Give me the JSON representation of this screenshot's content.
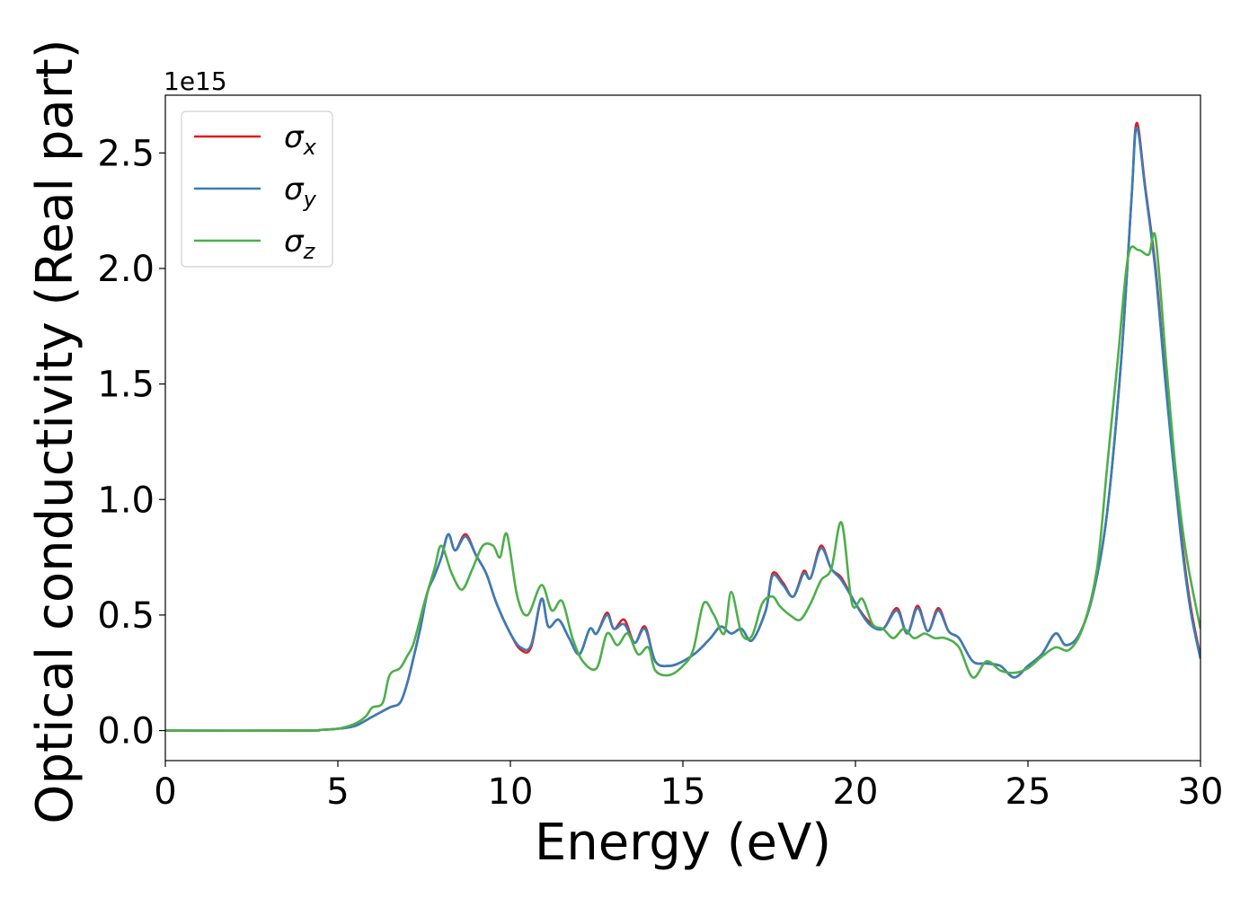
{
  "chart_data": {
    "type": "line",
    "title": "",
    "xlabel": "Energy (eV)",
    "ylabel": "Optical conductivity (Real part)",
    "y_offset_text": "1e15",
    "xlim": [
      0,
      30
    ],
    "ylim": [
      -0.13,
      2.75
    ],
    "x_ticks": [
      0,
      5,
      10,
      15,
      20,
      25,
      30
    ],
    "y_ticks": [
      0.0,
      0.5,
      1.0,
      1.5,
      2.0,
      2.5
    ],
    "x_tick_labels": [
      "0",
      "5",
      "10",
      "15",
      "20",
      "25",
      "30"
    ],
    "y_tick_labels": [
      "0.0",
      "0.5",
      "1.0",
      "1.5",
      "2.0",
      "2.5"
    ],
    "grid": false,
    "legend_position": "top-left",
    "series": [
      {
        "name": "σx",
        "name_symbol": "σ",
        "name_subscript": "x",
        "color": "#e41a1c",
        "points": [
          [
            0,
            0
          ],
          [
            4,
            0.0
          ],
          [
            4.5,
            0.003
          ],
          [
            5,
            0.008
          ],
          [
            5.5,
            0.02
          ],
          [
            6,
            0.06
          ],
          [
            6.5,
            0.1
          ],
          [
            6.8,
            0.12
          ],
          [
            7,
            0.2
          ],
          [
            7.2,
            0.32
          ],
          [
            7.4,
            0.45
          ],
          [
            7.6,
            0.6
          ],
          [
            7.8,
            0.67
          ],
          [
            8,
            0.75
          ],
          [
            8.2,
            0.85
          ],
          [
            8.4,
            0.78
          ],
          [
            8.7,
            0.85
          ],
          [
            9,
            0.76
          ],
          [
            9.3,
            0.68
          ],
          [
            9.6,
            0.55
          ],
          [
            10,
            0.42
          ],
          [
            10.3,
            0.35
          ],
          [
            10.6,
            0.36
          ],
          [
            10.9,
            0.57
          ],
          [
            11.1,
            0.45
          ],
          [
            11.4,
            0.48
          ],
          [
            11.7,
            0.4
          ],
          [
            12,
            0.33
          ],
          [
            12.3,
            0.44
          ],
          [
            12.5,
            0.42
          ],
          [
            12.8,
            0.51
          ],
          [
            13,
            0.44
          ],
          [
            13.3,
            0.48
          ],
          [
            13.6,
            0.38
          ],
          [
            13.9,
            0.45
          ],
          [
            14.2,
            0.3
          ],
          [
            14.6,
            0.28
          ],
          [
            15,
            0.3
          ],
          [
            15.4,
            0.34
          ],
          [
            15.8,
            0.4
          ],
          [
            16.1,
            0.45
          ],
          [
            16.4,
            0.42
          ],
          [
            16.7,
            0.44
          ],
          [
            17,
            0.39
          ],
          [
            17.4,
            0.52
          ],
          [
            17.6,
            0.68
          ],
          [
            17.9,
            0.64
          ],
          [
            18.2,
            0.58
          ],
          [
            18.5,
            0.69
          ],
          [
            18.7,
            0.66
          ],
          [
            19,
            0.8
          ],
          [
            19.3,
            0.7
          ],
          [
            19.6,
            0.66
          ],
          [
            20,
            0.55
          ],
          [
            20.4,
            0.47
          ],
          [
            20.8,
            0.44
          ],
          [
            21.2,
            0.53
          ],
          [
            21.5,
            0.42
          ],
          [
            21.8,
            0.54
          ],
          [
            22.1,
            0.43
          ],
          [
            22.4,
            0.53
          ],
          [
            22.7,
            0.43
          ],
          [
            23,
            0.4
          ],
          [
            23.4,
            0.3
          ],
          [
            23.8,
            0.29
          ],
          [
            24.2,
            0.28
          ],
          [
            24.6,
            0.23
          ],
          [
            25,
            0.28
          ],
          [
            25.4,
            0.33
          ],
          [
            25.8,
            0.42
          ],
          [
            26.1,
            0.37
          ],
          [
            26.5,
            0.42
          ],
          [
            26.9,
            0.6
          ],
          [
            27.3,
            0.95
          ],
          [
            27.7,
            1.6
          ],
          [
            28,
            2.3
          ],
          [
            28.15,
            2.63
          ],
          [
            28.4,
            2.35
          ],
          [
            28.7,
            2.0
          ],
          [
            29,
            1.5
          ],
          [
            29.4,
            0.9
          ],
          [
            29.7,
            0.55
          ],
          [
            30,
            0.32
          ]
        ]
      },
      {
        "name": "σy",
        "name_symbol": "σ",
        "name_subscript": "y",
        "color": "#377eb8",
        "points": [
          [
            0,
            0
          ],
          [
            4,
            0.0
          ],
          [
            4.5,
            0.003
          ],
          [
            5,
            0.008
          ],
          [
            5.5,
            0.02
          ],
          [
            6,
            0.06
          ],
          [
            6.5,
            0.1
          ],
          [
            6.8,
            0.12
          ],
          [
            7,
            0.2
          ],
          [
            7.2,
            0.32
          ],
          [
            7.4,
            0.45
          ],
          [
            7.6,
            0.6
          ],
          [
            7.8,
            0.67
          ],
          [
            8,
            0.75
          ],
          [
            8.2,
            0.85
          ],
          [
            8.4,
            0.78
          ],
          [
            8.7,
            0.84
          ],
          [
            9,
            0.76
          ],
          [
            9.3,
            0.68
          ],
          [
            9.6,
            0.55
          ],
          [
            10,
            0.42
          ],
          [
            10.3,
            0.36
          ],
          [
            10.6,
            0.37
          ],
          [
            10.9,
            0.57
          ],
          [
            11.1,
            0.45
          ],
          [
            11.4,
            0.48
          ],
          [
            11.7,
            0.4
          ],
          [
            12,
            0.33
          ],
          [
            12.3,
            0.44
          ],
          [
            12.5,
            0.42
          ],
          [
            12.8,
            0.5
          ],
          [
            13,
            0.44
          ],
          [
            13.3,
            0.46
          ],
          [
            13.6,
            0.38
          ],
          [
            13.9,
            0.44
          ],
          [
            14.2,
            0.3
          ],
          [
            14.6,
            0.28
          ],
          [
            15,
            0.3
          ],
          [
            15.4,
            0.34
          ],
          [
            15.8,
            0.4
          ],
          [
            16.1,
            0.45
          ],
          [
            16.4,
            0.42
          ],
          [
            16.7,
            0.44
          ],
          [
            17,
            0.39
          ],
          [
            17.4,
            0.52
          ],
          [
            17.6,
            0.67
          ],
          [
            17.9,
            0.63
          ],
          [
            18.2,
            0.58
          ],
          [
            18.5,
            0.68
          ],
          [
            18.7,
            0.66
          ],
          [
            19,
            0.79
          ],
          [
            19.3,
            0.7
          ],
          [
            19.6,
            0.65
          ],
          [
            20,
            0.55
          ],
          [
            20.4,
            0.46
          ],
          [
            20.8,
            0.44
          ],
          [
            21.2,
            0.52
          ],
          [
            21.5,
            0.42
          ],
          [
            21.8,
            0.53
          ],
          [
            22.1,
            0.43
          ],
          [
            22.4,
            0.52
          ],
          [
            22.7,
            0.43
          ],
          [
            23,
            0.4
          ],
          [
            23.4,
            0.3
          ],
          [
            23.8,
            0.29
          ],
          [
            24.2,
            0.28
          ],
          [
            24.6,
            0.23
          ],
          [
            25,
            0.28
          ],
          [
            25.4,
            0.33
          ],
          [
            25.8,
            0.42
          ],
          [
            26.1,
            0.37
          ],
          [
            26.5,
            0.42
          ],
          [
            26.9,
            0.6
          ],
          [
            27.3,
            0.95
          ],
          [
            27.7,
            1.6
          ],
          [
            28,
            2.3
          ],
          [
            28.15,
            2.61
          ],
          [
            28.4,
            2.34
          ],
          [
            28.7,
            1.98
          ],
          [
            29,
            1.48
          ],
          [
            29.4,
            0.88
          ],
          [
            29.7,
            0.53
          ],
          [
            30,
            0.31
          ]
        ]
      },
      {
        "name": "σz",
        "name_symbol": "σ",
        "name_subscript": "z",
        "color": "#4daf4a",
        "points": [
          [
            0,
            0
          ],
          [
            4,
            0.0
          ],
          [
            4.5,
            0.003
          ],
          [
            5,
            0.008
          ],
          [
            5.5,
            0.03
          ],
          [
            5.8,
            0.06
          ],
          [
            6,
            0.1
          ],
          [
            6.3,
            0.12
          ],
          [
            6.5,
            0.24
          ],
          [
            6.8,
            0.27
          ],
          [
            7,
            0.32
          ],
          [
            7.2,
            0.38
          ],
          [
            7.5,
            0.55
          ],
          [
            7.8,
            0.7
          ],
          [
            8,
            0.8
          ],
          [
            8.3,
            0.68
          ],
          [
            8.6,
            0.61
          ],
          [
            8.9,
            0.7
          ],
          [
            9.2,
            0.8
          ],
          [
            9.5,
            0.8
          ],
          [
            9.7,
            0.75
          ],
          [
            9.9,
            0.85
          ],
          [
            10.2,
            0.58
          ],
          [
            10.5,
            0.5
          ],
          [
            10.9,
            0.63
          ],
          [
            11.2,
            0.52
          ],
          [
            11.5,
            0.56
          ],
          [
            11.8,
            0.4
          ],
          [
            12.1,
            0.3
          ],
          [
            12.5,
            0.27
          ],
          [
            12.8,
            0.42
          ],
          [
            13.1,
            0.37
          ],
          [
            13.4,
            0.42
          ],
          [
            13.7,
            0.33
          ],
          [
            14,
            0.36
          ],
          [
            14.2,
            0.26
          ],
          [
            14.6,
            0.24
          ],
          [
            15,
            0.28
          ],
          [
            15.3,
            0.35
          ],
          [
            15.6,
            0.55
          ],
          [
            15.9,
            0.5
          ],
          [
            16.2,
            0.42
          ],
          [
            16.4,
            0.6
          ],
          [
            16.7,
            0.42
          ],
          [
            17,
            0.41
          ],
          [
            17.3,
            0.55
          ],
          [
            17.6,
            0.58
          ],
          [
            17.8,
            0.54
          ],
          [
            18.1,
            0.5
          ],
          [
            18.4,
            0.48
          ],
          [
            18.7,
            0.55
          ],
          [
            19,
            0.65
          ],
          [
            19.3,
            0.7
          ],
          [
            19.6,
            0.9
          ],
          [
            19.9,
            0.55
          ],
          [
            20.2,
            0.57
          ],
          [
            20.5,
            0.46
          ],
          [
            20.8,
            0.44
          ],
          [
            21.1,
            0.4
          ],
          [
            21.4,
            0.44
          ],
          [
            21.7,
            0.4
          ],
          [
            22,
            0.42
          ],
          [
            22.3,
            0.4
          ],
          [
            22.6,
            0.4
          ],
          [
            23,
            0.36
          ],
          [
            23.4,
            0.23
          ],
          [
            23.8,
            0.3
          ],
          [
            24.2,
            0.26
          ],
          [
            24.6,
            0.25
          ],
          [
            25,
            0.27
          ],
          [
            25.4,
            0.32
          ],
          [
            25.8,
            0.36
          ],
          [
            26.2,
            0.35
          ],
          [
            26.6,
            0.45
          ],
          [
            27,
            0.7
          ],
          [
            27.3,
            1.15
          ],
          [
            27.6,
            1.6
          ],
          [
            27.9,
            2.05
          ],
          [
            28.2,
            2.08
          ],
          [
            28.5,
            2.06
          ],
          [
            28.7,
            2.13
          ],
          [
            29,
            1.6
          ],
          [
            29.3,
            1.1
          ],
          [
            29.6,
            0.75
          ],
          [
            30,
            0.44
          ]
        ]
      }
    ]
  }
}
